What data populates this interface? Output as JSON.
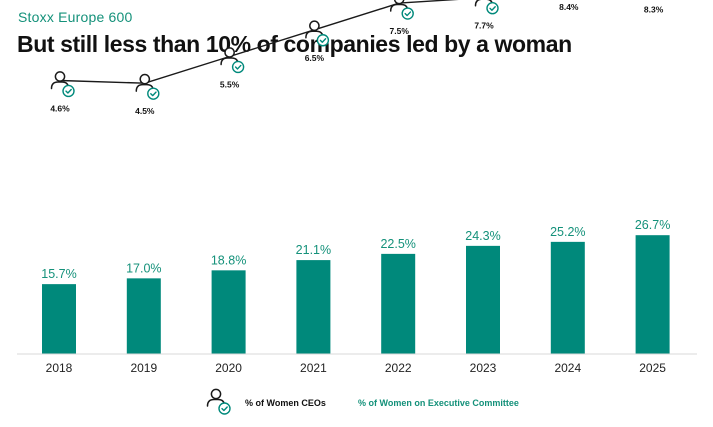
{
  "header": {
    "subtitle": "Stoxx Europe 600",
    "title": "But still less than 10% of companies led by a woman"
  },
  "colors": {
    "bar": "#00897b",
    "bar_label": "#14917a",
    "line": "#1a1a1a",
    "icon_stroke": "#1a1a1a",
    "check": "#00897b"
  },
  "icons": {
    "ceo_marker": "person-check-icon"
  },
  "chart_data": {
    "type": "bar",
    "categories": [
      "2018",
      "2019",
      "2020",
      "2021",
      "2022",
      "2023",
      "2024",
      "2025"
    ],
    "series": [
      {
        "name": "% of Women on Executive Committee",
        "type": "bar",
        "values": [
          15.7,
          17.0,
          18.8,
          21.1,
          22.5,
          24.3,
          25.2,
          26.7
        ],
        "labels": [
          "15.7%",
          "17.0%",
          "18.8%",
          "21.1%",
          "22.5%",
          "24.3%",
          "25.2%",
          "26.7%"
        ]
      },
      {
        "name": "% of Women CEOs",
        "type": "line",
        "values": [
          4.6,
          4.5,
          5.5,
          6.5,
          7.5,
          7.7,
          8.4,
          8.3
        ],
        "labels": [
          "4.6%",
          "4.5%",
          "5.5%",
          "6.5%",
          "7.5%",
          "7.7%",
          "8.4%",
          "8.3%"
        ]
      }
    ],
    "ylim": [
      0,
      30
    ],
    "legend_position": "bottom-center"
  },
  "legend": {
    "ceo_label": "% of Women CEOs",
    "exec_label": "% of Women on Executive Committee"
  }
}
